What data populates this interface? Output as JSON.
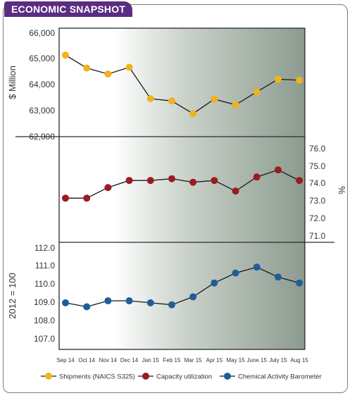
{
  "header": {
    "title": "ECONOMIC SNAPSHOT"
  },
  "colors": {
    "badge": "#5a2d82",
    "shipments": "#f2b21c",
    "capacity": "#9b1b1f",
    "cab": "#1f5e99",
    "panel_shade": "#9aa89c"
  },
  "chart_data": [
    {
      "type": "line",
      "series_key": "shipments",
      "ylabel": "$ Million",
      "ylim": [
        62000,
        66000
      ],
      "yticks": [
        "66,000",
        "65,000",
        "64,000",
        "63,000",
        "62,000"
      ],
      "categories": [
        "Sep 14",
        "Oct 14",
        "Nov 14",
        "Dec 14",
        "Jan 15",
        "Feb 15",
        "Mar 15",
        "Apr 15",
        "May 15",
        "June 15",
        "July 15",
        "Aug 15"
      ],
      "values": [
        65150,
        64650,
        64420,
        64680,
        63470,
        63380,
        62890,
        63450,
        63230,
        63730,
        64220,
        64180
      ]
    },
    {
      "type": "line",
      "series_key": "capacity",
      "ylabel": "%",
      "ylim": [
        70.6,
        76.5
      ],
      "yticks": [
        "76.0",
        "75.0",
        "74.0",
        "73.0",
        "72.0",
        "71.0"
      ],
      "categories": [
        "Sep 14",
        "Oct 14",
        "Nov 14",
        "Dec 14",
        "Jan 15",
        "Feb 15",
        "Mar 15",
        "Apr 15",
        "May 15",
        "June 15",
        "July 15",
        "Aug 15"
      ],
      "values": [
        73.1,
        73.1,
        73.7,
        74.1,
        74.1,
        74.2,
        74.0,
        74.1,
        73.5,
        74.3,
        74.7,
        74.1
      ]
    },
    {
      "type": "line",
      "series_key": "cab",
      "ylabel": "2012 = 100",
      "ylim": [
        106.65,
        112.05
      ],
      "yticks": [
        "112.0",
        "111.0",
        "110.0",
        "109.0",
        "108.0",
        "107.0"
      ],
      "categories": [
        "Sep 14",
        "Oct 14",
        "Nov 14",
        "Dec 14",
        "Jan 15",
        "Feb 15",
        "Mar 15",
        "Apr 15",
        "May 15",
        "June 15",
        "July 15",
        "Aug 15"
      ],
      "values": [
        109.0,
        108.8,
        109.1,
        109.1,
        109.0,
        108.9,
        109.3,
        110.0,
        110.5,
        110.8,
        110.3,
        110.0
      ]
    }
  ],
  "legend": [
    {
      "key": "shipments",
      "label": "Shipments (NAICS S325)"
    },
    {
      "key": "capacity",
      "label": "Capacity utilization"
    },
    {
      "key": "cab",
      "label": "Chemical Activity Barometer"
    }
  ]
}
